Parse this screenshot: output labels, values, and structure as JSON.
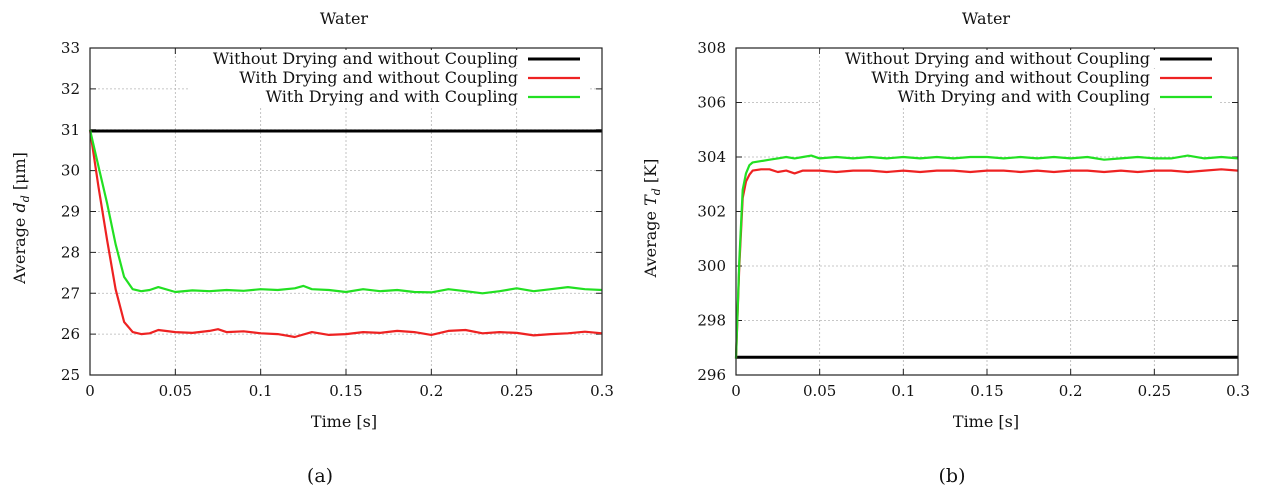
{
  "chart_data": [
    {
      "type": "line",
      "id": "a",
      "title": "Water",
      "xlabel": "Time [s]",
      "ylabel": "Average d_d [μm]",
      "ylabel_prefix": "Average ",
      "ylabel_var": "d",
      "ylabel_sub": "d",
      "ylabel_unit": " [μm]",
      "caption": "(a)",
      "xlim": [
        0,
        0.3
      ],
      "ylim": [
        25,
        33
      ],
      "xticks": [
        "0",
        "0.05",
        "0.1",
        "0.15",
        "0.2",
        "0.25",
        "0.3"
      ],
      "yticks": [
        "25",
        "26",
        "27",
        "28",
        "29",
        "30",
        "31",
        "32",
        "33"
      ],
      "grid": true,
      "legend_position": "top-right",
      "series": [
        {
          "name": "Without Drying and without Coupling",
          "color": "#000000",
          "x": [
            0,
            0.3
          ],
          "y": [
            30.97,
            30.97
          ]
        },
        {
          "name": "With Drying and without Coupling",
          "color": "#ee2222",
          "x": [
            0,
            0.005,
            0.01,
            0.015,
            0.02,
            0.025,
            0.03,
            0.035,
            0.04,
            0.05,
            0.06,
            0.07,
            0.075,
            0.08,
            0.09,
            0.1,
            0.11,
            0.12,
            0.13,
            0.14,
            0.15,
            0.16,
            0.17,
            0.18,
            0.19,
            0.2,
            0.21,
            0.22,
            0.23,
            0.24,
            0.25,
            0.26,
            0.27,
            0.28,
            0.29,
            0.3
          ],
          "y": [
            31.0,
            29.6,
            28.3,
            27.1,
            26.3,
            26.05,
            26.0,
            26.02,
            26.1,
            26.05,
            26.03,
            26.08,
            26.12,
            26.05,
            26.07,
            26.02,
            26.0,
            25.93,
            26.05,
            25.98,
            26.0,
            26.05,
            26.03,
            26.08,
            26.05,
            25.98,
            26.08,
            26.1,
            26.02,
            26.05,
            26.03,
            25.97,
            26.0,
            26.02,
            26.06,
            26.02
          ]
        },
        {
          "name": "With Drying and with Coupling",
          "color": "#22e022",
          "x": [
            0,
            0.005,
            0.01,
            0.015,
            0.02,
            0.025,
            0.03,
            0.035,
            0.04,
            0.05,
            0.06,
            0.07,
            0.08,
            0.09,
            0.1,
            0.11,
            0.12,
            0.125,
            0.13,
            0.14,
            0.15,
            0.16,
            0.17,
            0.18,
            0.19,
            0.2,
            0.21,
            0.22,
            0.23,
            0.24,
            0.25,
            0.26,
            0.27,
            0.28,
            0.29,
            0.3
          ],
          "y": [
            31.0,
            30.1,
            29.2,
            28.2,
            27.4,
            27.1,
            27.05,
            27.08,
            27.15,
            27.03,
            27.07,
            27.05,
            27.08,
            27.06,
            27.1,
            27.08,
            27.12,
            27.18,
            27.1,
            27.08,
            27.03,
            27.1,
            27.05,
            27.08,
            27.03,
            27.02,
            27.1,
            27.05,
            27.0,
            27.05,
            27.12,
            27.05,
            27.1,
            27.15,
            27.1,
            27.08
          ]
        }
      ]
    },
    {
      "type": "line",
      "id": "b",
      "title": "Water",
      "xlabel": "Time [s]",
      "ylabel": "Average T_d [K]",
      "ylabel_prefix": "Average ",
      "ylabel_var": "T",
      "ylabel_sub": "d",
      "ylabel_unit": " [K]",
      "caption": "(b)",
      "xlim": [
        0,
        0.3
      ],
      "ylim": [
        296,
        308
      ],
      "xticks": [
        "0",
        "0.05",
        "0.1",
        "0.15",
        "0.2",
        "0.25",
        "0.3"
      ],
      "yticks": [
        "296",
        "298",
        "300",
        "302",
        "304",
        "306",
        "308"
      ],
      "grid": true,
      "legend_position": "top-right",
      "series": [
        {
          "name": "Without Drying and without Coupling",
          "color": "#000000",
          "x": [
            0,
            0.3
          ],
          "y": [
            296.65,
            296.65
          ]
        },
        {
          "name": "With Drying and without Coupling",
          "color": "#ee2222",
          "x": [
            0,
            0.002,
            0.004,
            0.006,
            0.008,
            0.01,
            0.015,
            0.02,
            0.025,
            0.03,
            0.035,
            0.04,
            0.05,
            0.06,
            0.07,
            0.08,
            0.09,
            0.1,
            0.11,
            0.12,
            0.13,
            0.14,
            0.15,
            0.16,
            0.17,
            0.18,
            0.19,
            0.2,
            0.21,
            0.22,
            0.23,
            0.24,
            0.25,
            0.26,
            0.27,
            0.28,
            0.29,
            0.3
          ],
          "y": [
            296.6,
            300.0,
            302.5,
            303.1,
            303.35,
            303.5,
            303.55,
            303.55,
            303.45,
            303.5,
            303.4,
            303.5,
            303.5,
            303.45,
            303.5,
            303.5,
            303.45,
            303.5,
            303.45,
            303.5,
            303.5,
            303.45,
            303.5,
            303.5,
            303.45,
            303.5,
            303.45,
            303.5,
            303.5,
            303.45,
            303.5,
            303.45,
            303.5,
            303.5,
            303.45,
            303.5,
            303.55,
            303.5
          ]
        },
        {
          "name": "With Drying and with Coupling",
          "color": "#22e022",
          "x": [
            0,
            0.002,
            0.004,
            0.006,
            0.008,
            0.01,
            0.015,
            0.02,
            0.025,
            0.03,
            0.035,
            0.04,
            0.045,
            0.05,
            0.06,
            0.07,
            0.08,
            0.09,
            0.1,
            0.11,
            0.12,
            0.13,
            0.14,
            0.15,
            0.16,
            0.17,
            0.18,
            0.19,
            0.2,
            0.21,
            0.22,
            0.23,
            0.24,
            0.25,
            0.26,
            0.27,
            0.28,
            0.29,
            0.3
          ],
          "y": [
            296.6,
            300.2,
            302.8,
            303.4,
            303.7,
            303.8,
            303.85,
            303.9,
            303.95,
            304.0,
            303.95,
            304.0,
            304.05,
            303.95,
            304.0,
            303.95,
            304.0,
            303.95,
            304.0,
            303.95,
            304.0,
            303.95,
            304.0,
            304.0,
            303.95,
            304.0,
            303.95,
            304.0,
            303.95,
            304.0,
            303.9,
            303.95,
            304.0,
            303.95,
            303.95,
            304.05,
            303.95,
            304.0,
            303.95
          ]
        }
      ]
    }
  ]
}
